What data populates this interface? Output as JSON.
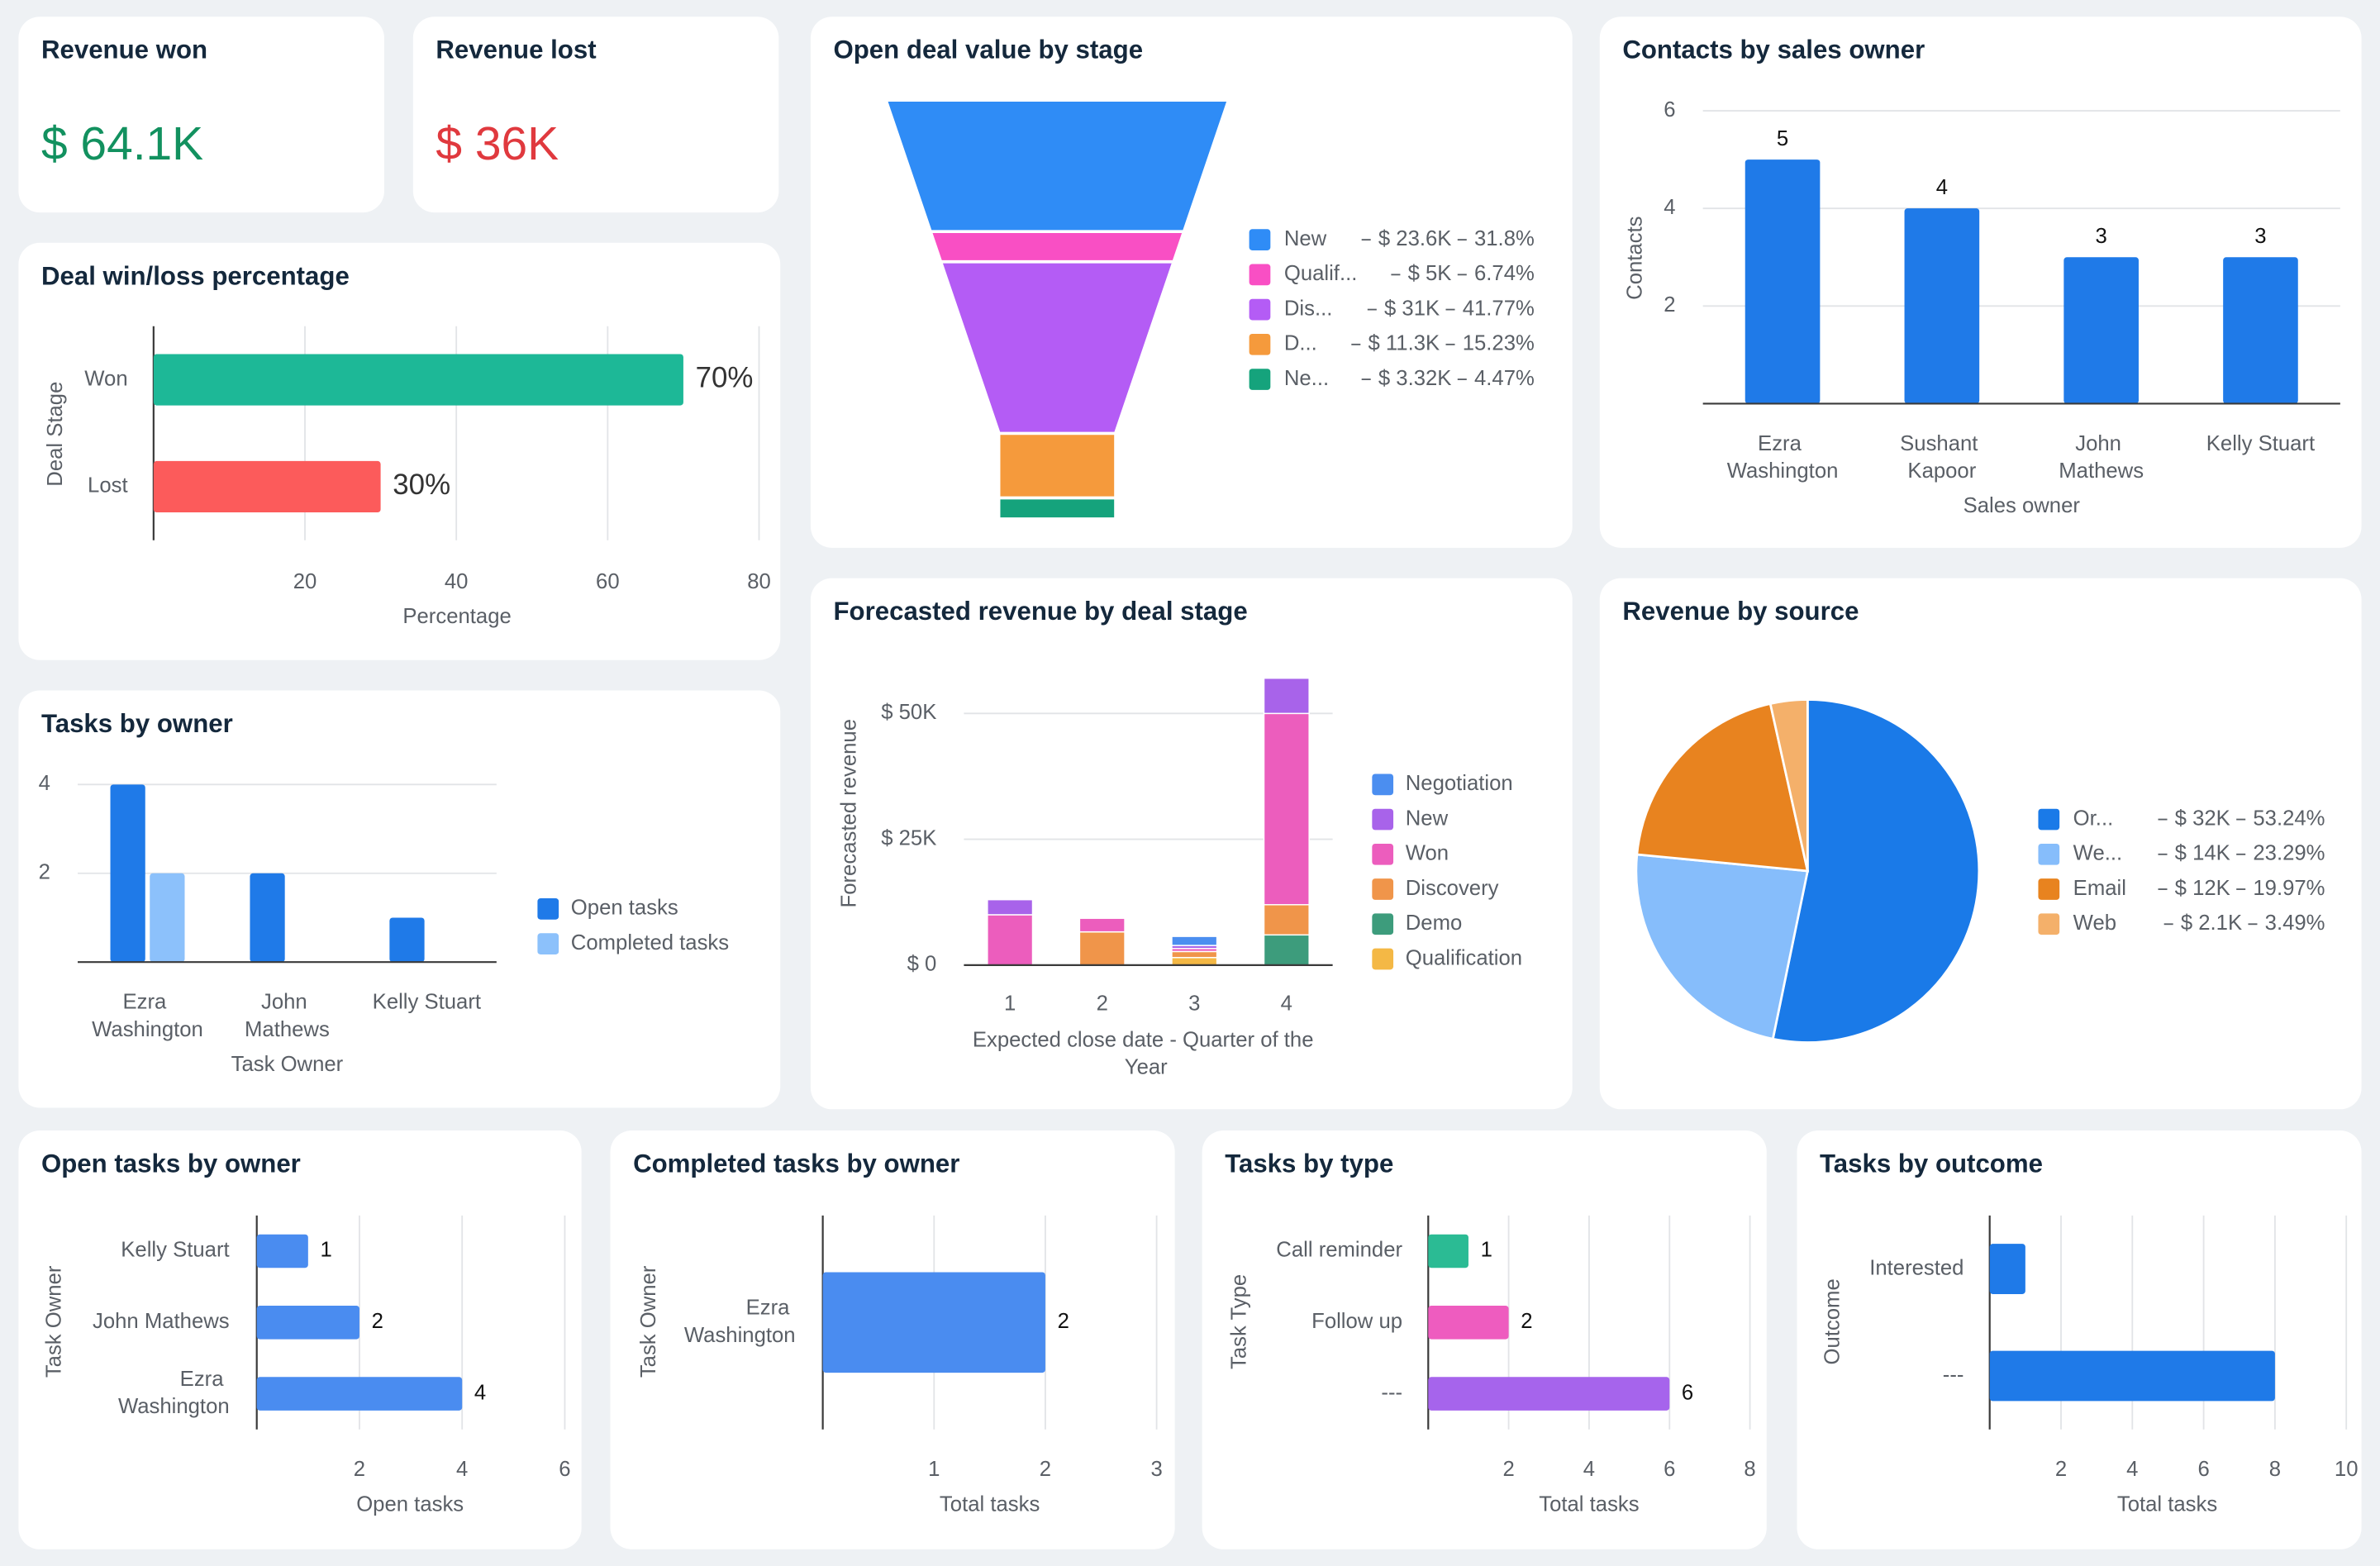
{
  "cards": [
    {
      "title": "Revenue won",
      "value": "$ 64.1K",
      "color": "#12915f"
    },
    {
      "title": "Revenue lost",
      "value": "$ 36K",
      "color": "#e0393e"
    }
  ],
  "chart_data": [
    {
      "type": "hbar",
      "title": "Deal win/loss percentage",
      "categories": [
        "Won",
        "Lost"
      ],
      "values": [
        70,
        30
      ],
      "value_labels": [
        "70%",
        "30%"
      ],
      "colors": [
        "#1db897",
        "#fc5b5b"
      ],
      "xlim": [
        0,
        80
      ],
      "xticks": [
        20,
        40,
        60,
        80
      ],
      "x_label": "Percentage",
      "y_label": "Deal Stage",
      "grid": true
    },
    {
      "type": "bar",
      "title": "Tasks by owner",
      "categories": [
        "Ezra Washington",
        "John Mathews",
        "Kelly Stuart"
      ],
      "series": [
        {
          "name": "Open tasks",
          "color": "#1f7ae8",
          "values": [
            4,
            2,
            1
          ]
        },
        {
          "name": "Completed tasks",
          "color": "#8cc1fb",
          "values": [
            2,
            0,
            0
          ]
        }
      ],
      "ylim": [
        0,
        4
      ],
      "yticks": [
        2,
        4
      ],
      "x_label": "Task Owner",
      "grid": true,
      "legend": "right"
    },
    {
      "type": "funnel",
      "title": "Open deal value by stage",
      "categories": [
        "New",
        "Qualif...",
        "Dis...",
        "D...",
        "Ne..."
      ],
      "values": [
        23600,
        5000,
        31000,
        11300,
        3320
      ],
      "value_labels": [
        "$ 23.6K",
        "$ 5K",
        "$ 31K",
        "$ 11.3K",
        "$ 3.32K"
      ],
      "percentages": [
        31.8,
        6.74,
        41.77,
        15.23,
        4.47
      ],
      "percentage_labels": [
        "31.8%",
        "6.74%",
        "41.77%",
        "15.23%",
        "4.47%"
      ],
      "colors": [
        "#2f8cf6",
        "#f94fc4",
        "#b45cf5",
        "#f59a3c",
        "#15a37c"
      ],
      "legend": "right"
    },
    {
      "type": "bar",
      "title": "Contacts by sales owner",
      "categories": [
        "Ezra Washington",
        "Sushant Kapoor",
        "John Mathews",
        "Kelly Stuart"
      ],
      "values": [
        5,
        4,
        3,
        3
      ],
      "show_values": true,
      "color": "#1f7ae8",
      "ylim": [
        0,
        6
      ],
      "yticks": [
        2,
        4,
        6
      ],
      "x_label": "Sales owner",
      "y_label": "Contacts",
      "grid": true
    },
    {
      "type": "bar",
      "stacked": true,
      "title": "Forecasted revenue by deal stage",
      "categories": [
        "1",
        "2",
        "3",
        "4"
      ],
      "series": [
        {
          "name": "Negotiation",
          "color": "#4b8ef0",
          "values": [
            0,
            0,
            1800,
            0
          ]
        },
        {
          "name": "New",
          "color": "#a863ea",
          "values": [
            3000,
            0,
            600,
            7000
          ]
        },
        {
          "name": "Won",
          "color": "#ec5dbd",
          "values": [
            10000,
            2700,
            600,
            38000
          ]
        },
        {
          "name": "Discovery",
          "color": "#f0954a",
          "values": [
            0,
            6600,
            1200,
            6000
          ]
        },
        {
          "name": "Demo",
          "color": "#3d9c7c",
          "values": [
            0,
            0,
            0,
            6000
          ]
        },
        {
          "name": "Qualification",
          "color": "#f4b845",
          "values": [
            0,
            0,
            1500,
            0
          ]
        }
      ],
      "ylim": [
        0,
        60000
      ],
      "yticks": [
        {
          "value": 0,
          "label": "$ 0"
        },
        {
          "value": 25000,
          "label": "$ 25K"
        },
        {
          "value": 50000,
          "label": "$ 50K"
        }
      ],
      "x_label": "Expected close date - Quarter of the Year",
      "y_label": "Forecasted revenue",
      "grid": true,
      "legend": "right"
    },
    {
      "type": "pie",
      "title": "Revenue by source",
      "categories": [
        "Or...",
        "We...",
        "Email",
        "Web"
      ],
      "values": [
        32000,
        14000,
        12000,
        2100
      ],
      "value_labels": [
        "$ 32K",
        "$ 14K",
        "$ 12K",
        "$ 2.1K"
      ],
      "percentages": [
        53.24,
        23.29,
        19.97,
        3.49
      ],
      "percentage_labels": [
        "53.24%",
        "23.29%",
        "19.97%",
        "3.49%"
      ],
      "colors": [
        "#1a7ae8",
        "#86bdfb",
        "#e8831f",
        "#f4b06a"
      ],
      "legend": "right"
    },
    {
      "type": "hbar",
      "title": "Open tasks by owner",
      "categories": [
        "Kelly Stuart",
        "John Mathews",
        "Ezra Washington"
      ],
      "values": [
        1,
        2,
        4
      ],
      "show_values": true,
      "color": "#4a8cf0",
      "xlim": [
        0,
        6
      ],
      "xticks": [
        2,
        4,
        6
      ],
      "x_label": "Open tasks",
      "y_label": "Task Owner",
      "grid": true
    },
    {
      "type": "hbar",
      "title": "Completed tasks by owner",
      "categories": [
        "Ezra Washington"
      ],
      "values": [
        2
      ],
      "show_values": true,
      "color": "#4a8cf0",
      "xlim": [
        0,
        3
      ],
      "xticks": [
        1,
        2,
        3
      ],
      "x_label": "Total tasks",
      "y_label": "Task Owner",
      "grid": true
    },
    {
      "type": "hbar",
      "title": "Tasks by type",
      "categories": [
        "Call reminder",
        "Follow up",
        "---"
      ],
      "values": [
        1,
        2,
        6
      ],
      "show_values": true,
      "colors": [
        "#2bbb94",
        "#ee5cbf",
        "#a664ec"
      ],
      "xlim": [
        0,
        8
      ],
      "xticks": [
        2,
        4,
        6,
        8
      ],
      "x_label": "Total tasks",
      "y_label": "Task Type",
      "grid": true
    },
    {
      "type": "hbar",
      "title": "Tasks by outcome",
      "categories": [
        "Interested",
        "---"
      ],
      "values": [
        1,
        8
      ],
      "color": "#1f7ae8",
      "xlim": [
        0,
        10
      ],
      "xticks": [
        2,
        4,
        6,
        8,
        10
      ],
      "x_label": "Total tasks",
      "y_label": "Outcome",
      "grid": true
    }
  ]
}
